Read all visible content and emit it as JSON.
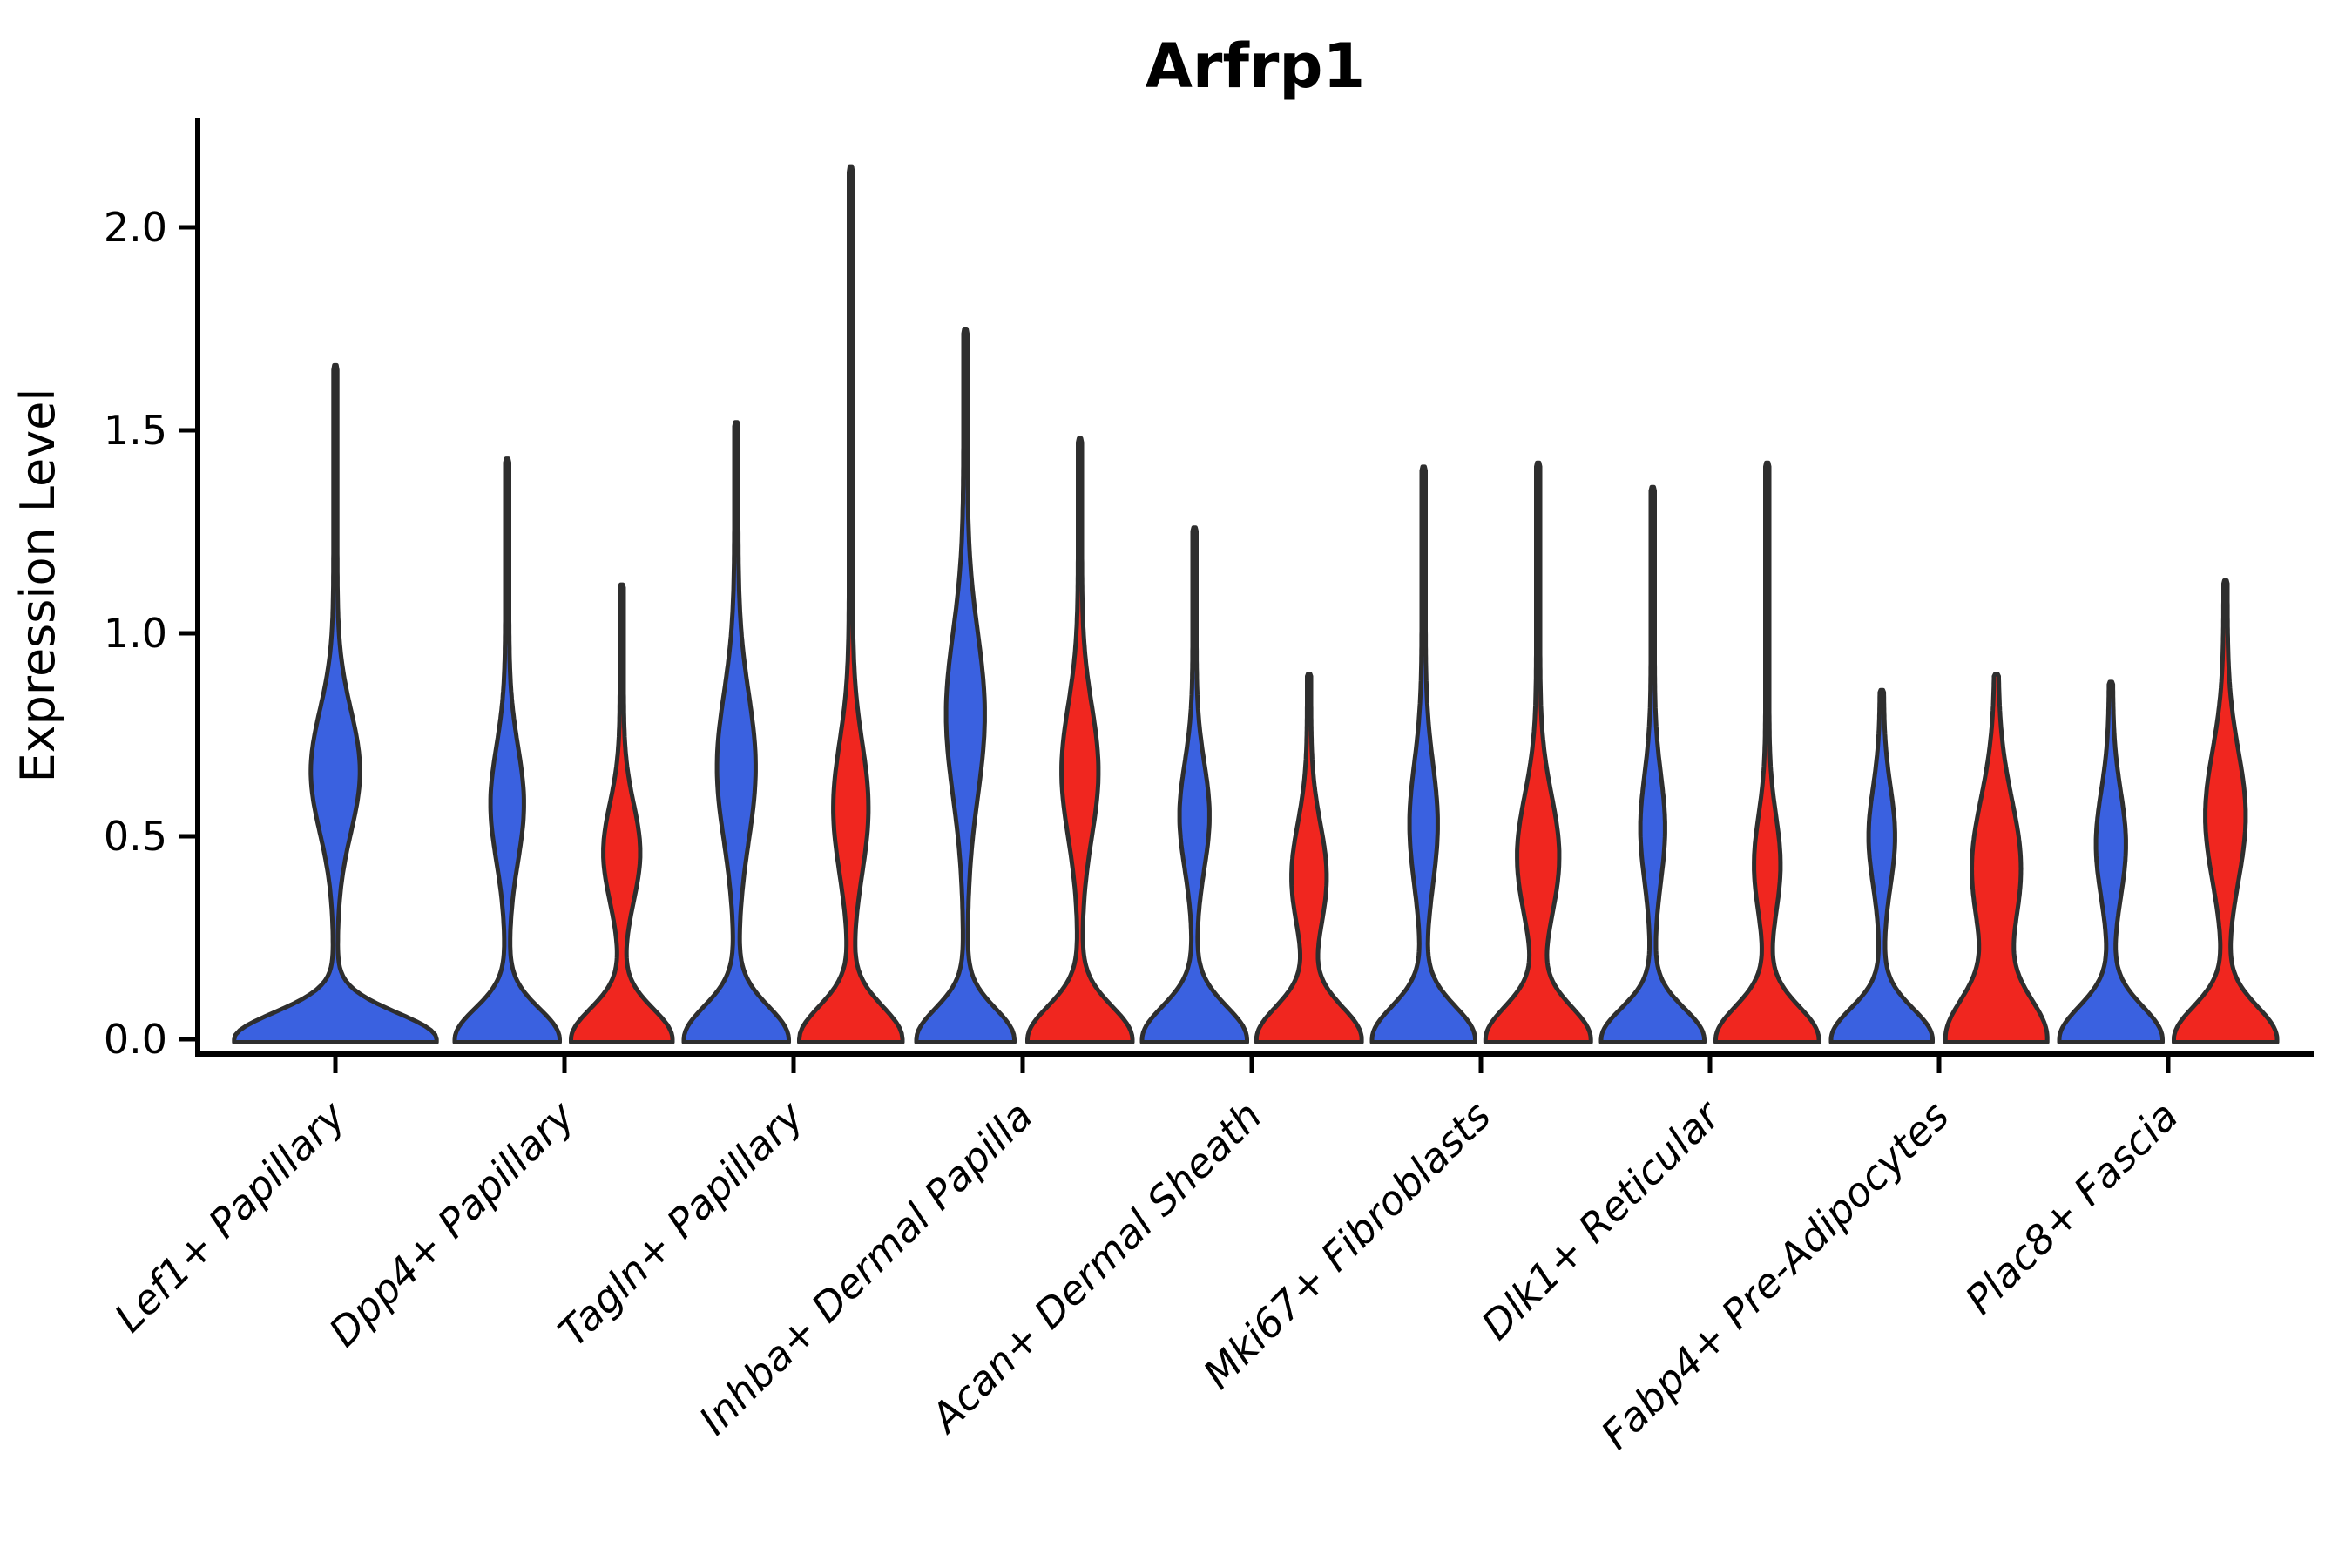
{
  "chart_data": {
    "type": "violin",
    "title": "Arfrp1",
    "ylabel": "Expression Level",
    "ylim": [
      0.0,
      2.27
    ],
    "grid": false,
    "legend": "none",
    "yticks": [
      {
        "label": "0.0",
        "value": 0.0
      },
      {
        "label": "0.5",
        "value": 0.5
      },
      {
        "label": "1.0",
        "value": 1.0
      },
      {
        "label": "1.5",
        "value": 1.5
      },
      {
        "label": "2.0",
        "value": 2.0
      }
    ],
    "categories": [
      "Lef1+ Papillary",
      "Dpp4+ Papillary",
      "Tagln+ Papillary",
      "Inhba+ Dermal Papilla",
      "Acan+ Dermal Sheath",
      "Mki67+ Fibroblasts",
      "Dlk1+ Reticular",
      "Fabp4+ Pre-Adipocytes",
      "Plac8+ Fascia"
    ],
    "series": [
      {
        "key": "blue",
        "color": "#3A61E0",
        "violins": [
          {
            "max": 1.66,
            "bulge_center": 0.66,
            "bulge_sigma": 0.15,
            "bulge_halfwidth": 26,
            "base_halfwidth": 114,
            "base_sigma": 0.065,
            "wide": true
          },
          {
            "max": 1.43,
            "bulge_center": 0.58,
            "bulge_sigma": 0.14,
            "bulge_halfwidth": 17,
            "base_halfwidth": 58,
            "base_sigma": 0.075
          },
          {
            "max": 1.52,
            "bulge_center": 0.67,
            "bulge_sigma": 0.18,
            "bulge_halfwidth": 20,
            "base_halfwidth": 58,
            "base_sigma": 0.08
          },
          {
            "max": 1.75,
            "bulge_center": 0.8,
            "bulge_sigma": 0.2,
            "bulge_halfwidth": 20,
            "base_halfwidth": 54,
            "base_sigma": 0.075
          },
          {
            "max": 1.26,
            "bulge_center": 0.55,
            "bulge_sigma": 0.13,
            "bulge_halfwidth": 15,
            "base_halfwidth": 58,
            "base_sigma": 0.08
          },
          {
            "max": 1.41,
            "bulge_center": 0.53,
            "bulge_sigma": 0.15,
            "bulge_halfwidth": 14,
            "base_halfwidth": 57,
            "base_sigma": 0.08
          },
          {
            "max": 1.36,
            "bulge_center": 0.52,
            "bulge_sigma": 0.13,
            "bulge_halfwidth": 12,
            "base_halfwidth": 57,
            "base_sigma": 0.075
          },
          {
            "max": 0.86,
            "bulge_center": 0.5,
            "bulge_sigma": 0.12,
            "bulge_halfwidth": 13,
            "base_halfwidth": 56,
            "base_sigma": 0.075
          },
          {
            "max": 0.88,
            "bulge_center": 0.48,
            "bulge_sigma": 0.13,
            "bulge_halfwidth": 15,
            "base_halfwidth": 57,
            "base_sigma": 0.08
          }
        ]
      },
      {
        "key": "red",
        "color": "#F0261F",
        "violins": [
          null,
          {
            "max": 1.12,
            "bulge_center": 0.46,
            "bulge_sigma": 0.12,
            "bulge_halfwidth": 19,
            "base_halfwidth": 56,
            "base_sigma": 0.075
          },
          {
            "max": 2.15,
            "bulge_center": 0.57,
            "bulge_sigma": 0.16,
            "bulge_halfwidth": 18,
            "base_halfwidth": 57,
            "base_sigma": 0.08
          },
          {
            "max": 1.48,
            "bulge_center": 0.66,
            "bulge_sigma": 0.16,
            "bulge_halfwidth": 19,
            "base_halfwidth": 58,
            "base_sigma": 0.08
          },
          {
            "max": 0.9,
            "bulge_center": 0.4,
            "bulge_sigma": 0.13,
            "bulge_halfwidth": 18,
            "base_halfwidth": 58,
            "base_sigma": 0.08
          },
          {
            "max": 1.42,
            "bulge_center": 0.45,
            "bulge_sigma": 0.15,
            "bulge_halfwidth": 22,
            "base_halfwidth": 58,
            "base_sigma": 0.08
          },
          {
            "max": 1.42,
            "bulge_center": 0.43,
            "bulge_sigma": 0.12,
            "bulge_halfwidth": 13,
            "base_halfwidth": 57,
            "base_sigma": 0.08
          },
          {
            "max": 0.9,
            "bulge_center": 0.42,
            "bulge_sigma": 0.17,
            "bulge_halfwidth": 26,
            "base_halfwidth": 55,
            "base_sigma": 0.1
          },
          {
            "max": 1.13,
            "bulge_center": 0.55,
            "bulge_sigma": 0.16,
            "bulge_halfwidth": 21,
            "base_halfwidth": 57,
            "base_sigma": 0.08
          }
        ]
      }
    ]
  }
}
